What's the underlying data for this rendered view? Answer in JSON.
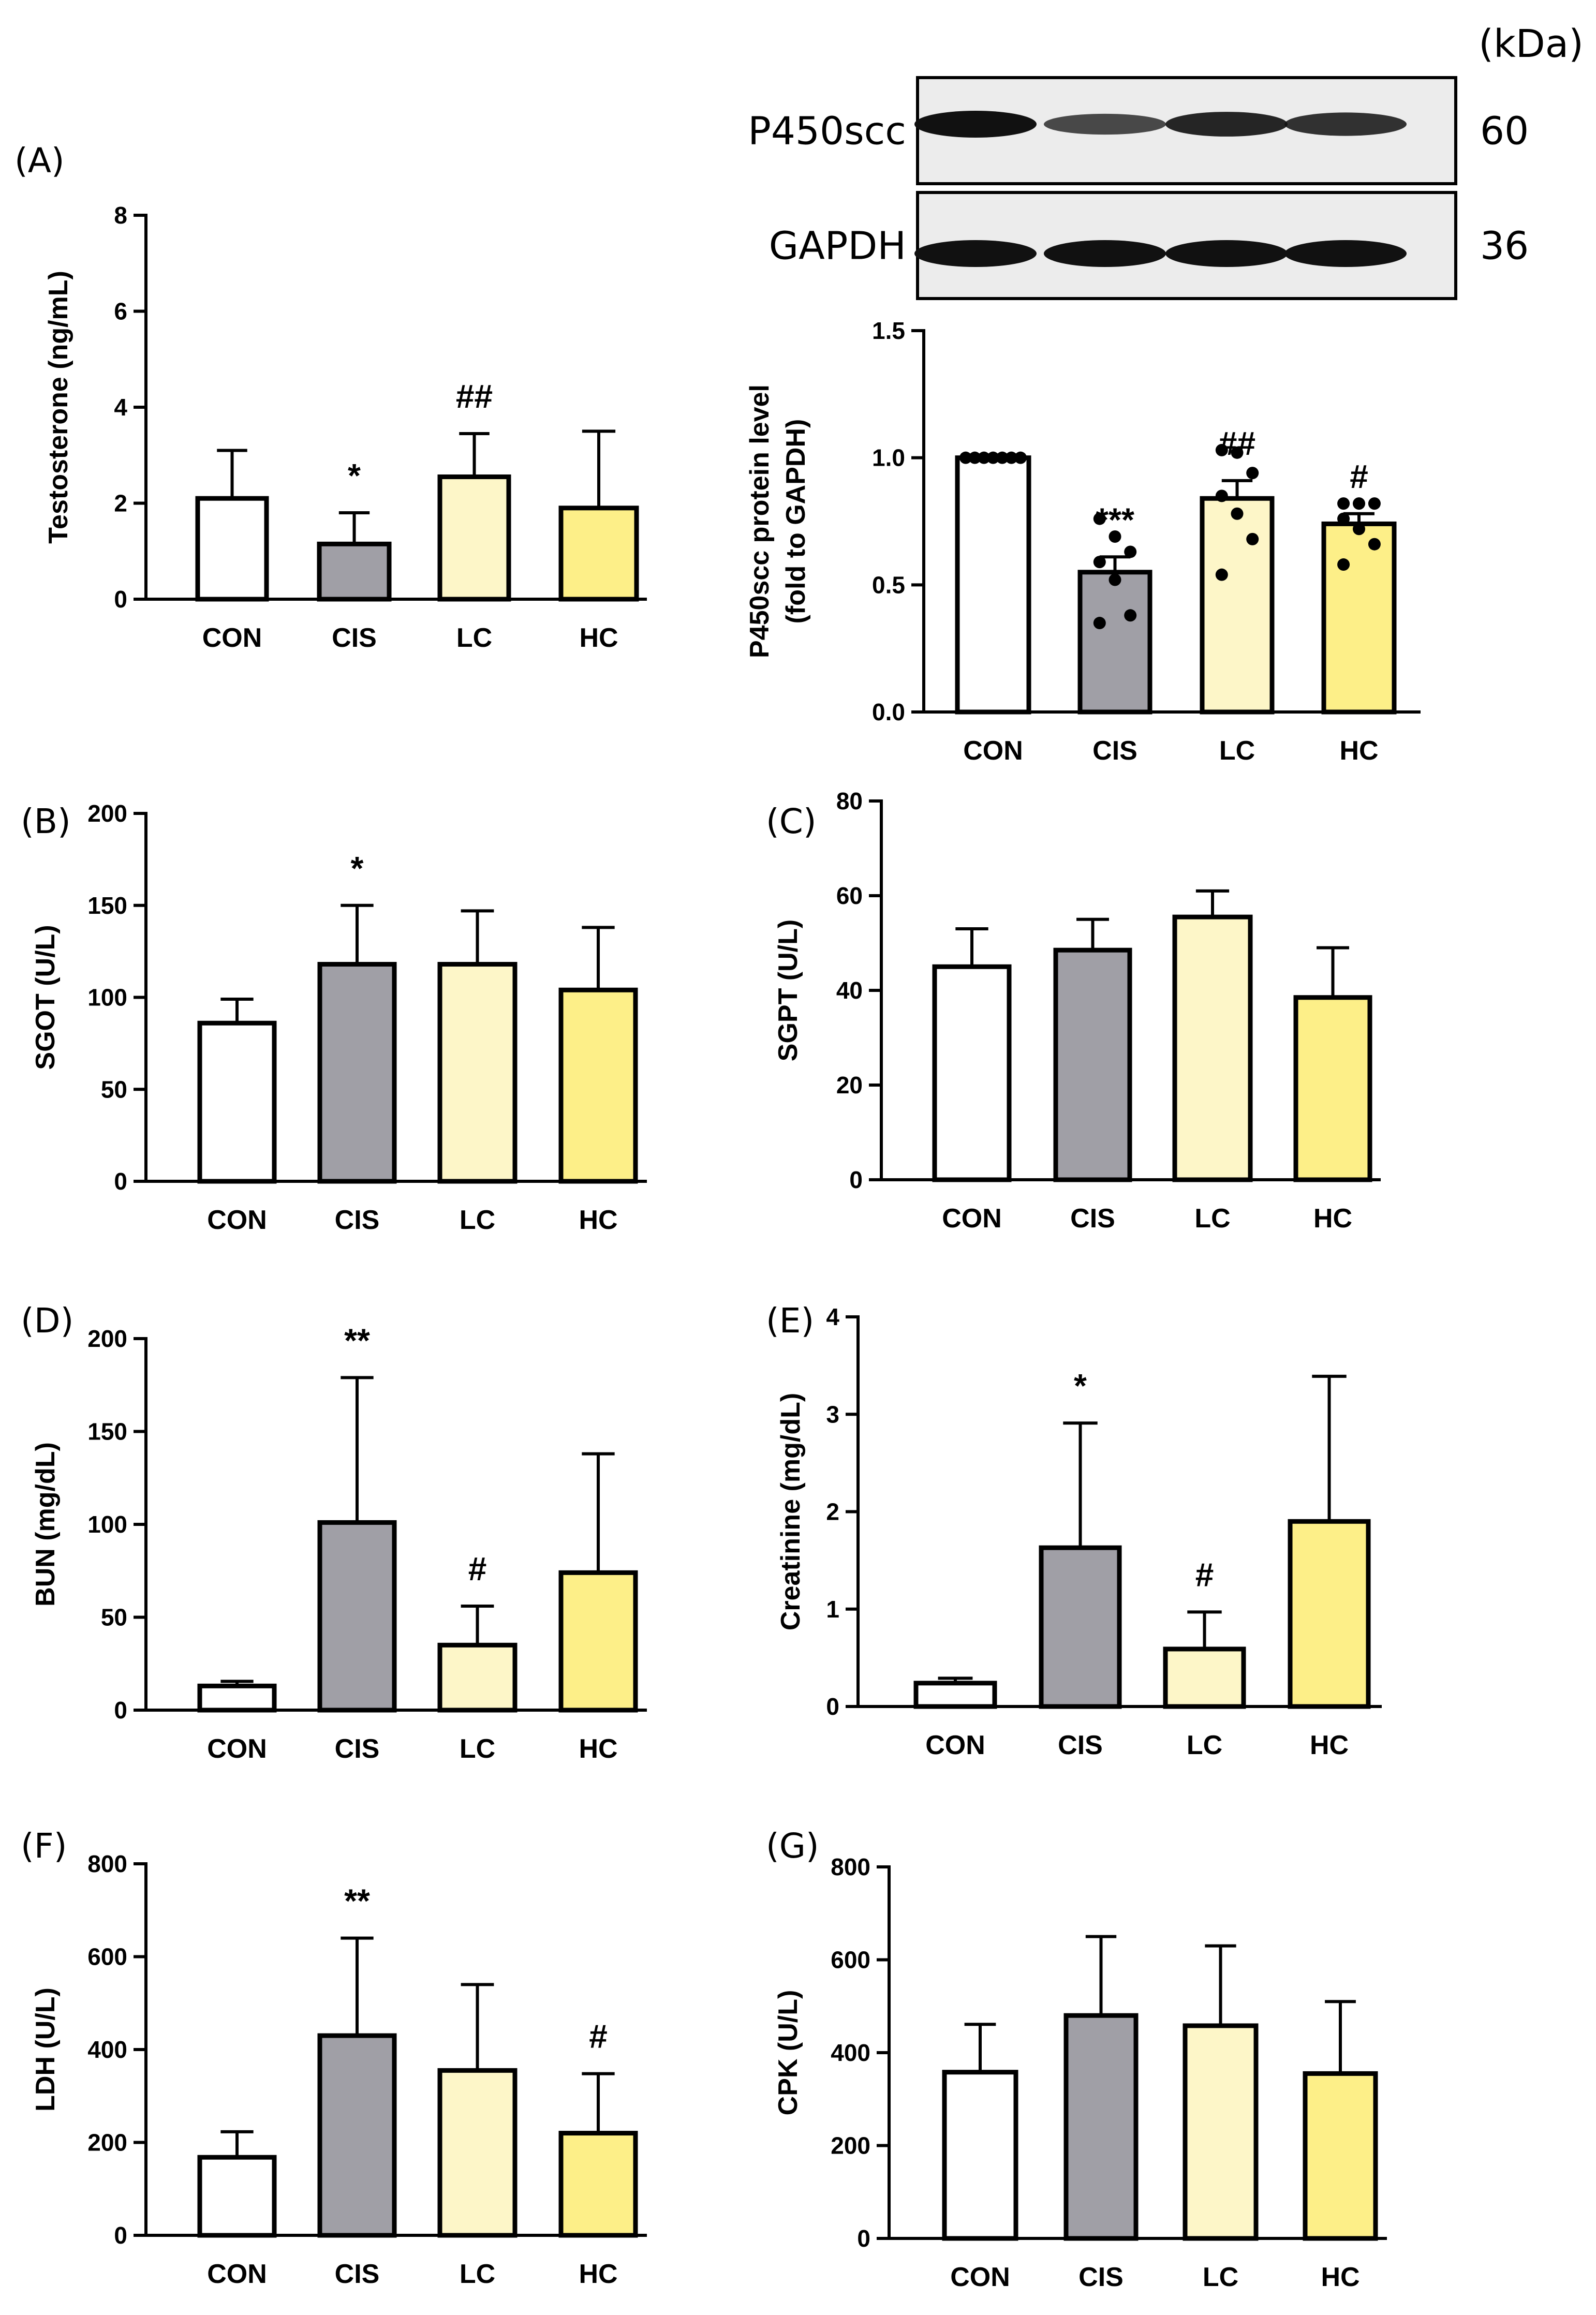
{
  "western_blot": {
    "unit_label": "(kDa)",
    "rows": [
      {
        "protein": "P450scc",
        "kda": "60",
        "band_intensity": [
          1.0,
          0.55,
          0.84,
          0.74
        ]
      },
      {
        "protein": "GAPDH",
        "kda": "36",
        "band_intensity": [
          1.0,
          1.0,
          1.0,
          1.0
        ]
      }
    ]
  },
  "colors": {
    "CON": "#ffffff",
    "CIS": "#a09fa6",
    "LC": "#fdf6c8",
    "HC": "#fdef88",
    "outline": "#000000",
    "blot_bg": "#ececec",
    "band": "#111111"
  },
  "chart_data": [
    {
      "id": "testosterone",
      "panel_label": "(A)",
      "type": "bar",
      "ylabel": "Testosterone (ng/mL)",
      "categories": [
        "CON",
        "CIS",
        "LC",
        "HC"
      ],
      "values": [
        2.1,
        1.15,
        2.55,
        1.9
      ],
      "errors": [
        1.0,
        0.65,
        0.9,
        1.6
      ],
      "significance": [
        "",
        "*",
        "##",
        ""
      ],
      "ylim": [
        0,
        8
      ],
      "yticks": [
        "0",
        "2",
        "4",
        "6",
        "8"
      ]
    },
    {
      "id": "p450scc",
      "panel_label": "",
      "type": "bar",
      "ylabel": "P450scc protein level",
      "ylabel2": "(fold to GAPDH)",
      "categories": [
        "CON",
        "CIS",
        "LC",
        "HC"
      ],
      "values": [
        1.0,
        0.55,
        0.84,
        0.74
      ],
      "errors": [
        0.0,
        0.06,
        0.07,
        0.04
      ],
      "significance": [
        "",
        "***",
        "##",
        "#"
      ],
      "points": [
        [
          1.0,
          1.0,
          1.0,
          1.0,
          1.0,
          1.0,
          1.0
        ],
        [
          0.76,
          0.69,
          0.63,
          0.59,
          0.52,
          0.38,
          0.35
        ],
        [
          1.03,
          1.02,
          0.94,
          0.85,
          0.78,
          0.68,
          0.54
        ],
        [
          0.82,
          0.82,
          0.82,
          0.76,
          0.72,
          0.66,
          0.58
        ]
      ],
      "ylim": [
        0,
        1.5
      ],
      "yticks": [
        "0.0",
        "0.5",
        "1.0",
        "1.5"
      ]
    },
    {
      "id": "sgot",
      "panel_label": "(B)",
      "type": "bar",
      "ylabel": "SGOT (U/L)",
      "categories": [
        "CON",
        "CIS",
        "LC",
        "HC"
      ],
      "values": [
        86,
        118,
        118,
        104
      ],
      "errors": [
        13,
        32,
        29,
        34
      ],
      "significance": [
        "",
        "*",
        "",
        ""
      ],
      "ylim": [
        0,
        200
      ],
      "yticks": [
        "0",
        "50",
        "100",
        "150",
        "200"
      ]
    },
    {
      "id": "sgpt",
      "panel_label": "(C)",
      "type": "bar",
      "ylabel": "SGPT (U/L)",
      "categories": [
        "CON",
        "CIS",
        "LC",
        "HC"
      ],
      "values": [
        45,
        48.5,
        55.5,
        38.5
      ],
      "errors": [
        8,
        6.5,
        5.5,
        10.5
      ],
      "significance": [
        "",
        "",
        "",
        ""
      ],
      "ylim": [
        0,
        80
      ],
      "yticks": [
        "0",
        "20",
        "40",
        "60",
        "80"
      ]
    },
    {
      "id": "bun",
      "panel_label": "(D)",
      "type": "bar",
      "ylabel": "BUN (mg/dL)",
      "categories": [
        "CON",
        "CIS",
        "LC",
        "HC"
      ],
      "values": [
        13,
        101,
        35,
        74
      ],
      "errors": [
        2.5,
        78,
        21,
        64
      ],
      "significance": [
        "",
        "**",
        "#",
        ""
      ],
      "ylim": [
        0,
        200
      ],
      "yticks": [
        "0",
        "50",
        "100",
        "150",
        "200"
      ]
    },
    {
      "id": "creatinine",
      "panel_label": "(E)",
      "type": "bar",
      "ylabel": "Creatinine (mg/dL)",
      "categories": [
        "CON",
        "CIS",
        "LC",
        "HC"
      ],
      "values": [
        0.24,
        1.63,
        0.59,
        1.9
      ],
      "errors": [
        0.05,
        1.28,
        0.38,
        1.49
      ],
      "significance": [
        "",
        "*",
        "#",
        ""
      ],
      "ylim": [
        0,
        4
      ],
      "yticks": [
        "0",
        "1",
        "2",
        "3",
        "4"
      ]
    },
    {
      "id": "ldh",
      "panel_label": "(F)",
      "type": "bar",
      "ylabel": "LDH (U/L)",
      "categories": [
        "CON",
        "CIS",
        "LC",
        "HC"
      ],
      "values": [
        168,
        430,
        355,
        220
      ],
      "errors": [
        55,
        210,
        185,
        128
      ],
      "significance": [
        "",
        "**",
        "",
        "#"
      ],
      "ylim": [
        0,
        800
      ],
      "yticks": [
        "0",
        "200",
        "400",
        "600",
        "800"
      ]
    },
    {
      "id": "cpk",
      "panel_label": "(G)",
      "type": "bar",
      "ylabel": "CPK (U/L)",
      "categories": [
        "CON",
        "CIS",
        "LC",
        "HC"
      ],
      "values": [
        358,
        480,
        458,
        355
      ],
      "errors": [
        103,
        170,
        172,
        155
      ],
      "significance": [
        "",
        "",
        "",
        ""
      ],
      "ylim": [
        0,
        800
      ],
      "yticks": [
        "0",
        "200",
        "400",
        "600",
        "800"
      ]
    }
  ]
}
